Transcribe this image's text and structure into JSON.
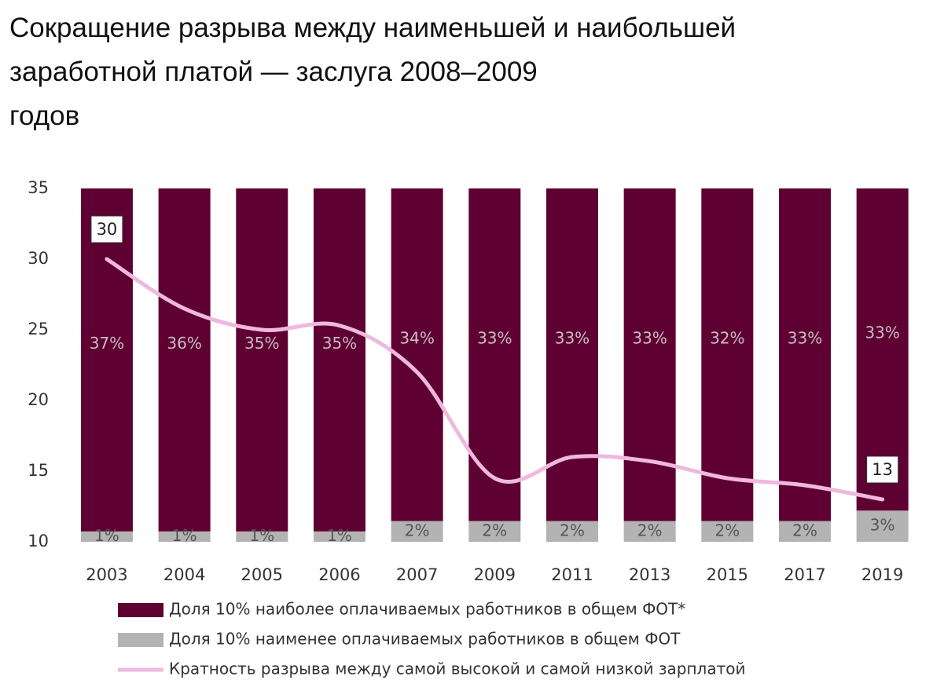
{
  "chart_data": {
    "type": "bar",
    "title": [
      "Сокращение разрыва между наименьшей и наибольшей",
      "заработной платой — заслуга 2008–2009",
      "годов"
    ],
    "categories": [
      "2003",
      "2004",
      "2005",
      "2006",
      "2007",
      "2009",
      "2011",
      "2013",
      "2015",
      "2017",
      "2019"
    ],
    "series": [
      {
        "name": "Доля 10% наиболее оплачиваемых работников в общем ФОТ*",
        "type": "bar",
        "axis": "y2",
        "color": "#5e0032",
        "values": [
          37,
          36,
          35,
          35,
          34,
          33,
          33,
          33,
          32,
          33,
          33
        ],
        "value_labels": [
          "37%",
          "36%",
          "35%",
          "35%",
          "34%",
          "33%",
          "33%",
          "33%",
          "32%",
          "33%",
          "33%"
        ]
      },
      {
        "name": "Доля 10% наименее оплачиваемых работников в общем ФОТ",
        "type": "bar",
        "axis": "y2",
        "color": "#b3b3b3",
        "values": [
          1,
          1,
          1,
          1,
          2,
          2,
          2,
          2,
          2,
          2,
          3
        ],
        "value_labels": [
          "1%",
          "1%",
          "1%",
          "1%",
          "2%",
          "2%",
          "2%",
          "2%",
          "2%",
          "2%",
          "3%"
        ]
      },
      {
        "name": "Кратность разрыва между самой высокой и самой низкой зарплатой",
        "type": "line",
        "color": "#efb8de",
        "values": [
          30,
          26.5,
          25,
          25.3,
          22,
          14.5,
          16,
          15.7,
          14.5,
          14,
          13
        ],
        "value_labels": [
          "30",
          null,
          null,
          null,
          null,
          null,
          null,
          null,
          null,
          null,
          "13"
        ]
      }
    ],
    "ylim": [
      10,
      35
    ],
    "yticks": [
      10,
      15,
      20,
      25,
      30,
      35
    ],
    "y2lim": [
      0,
      34
    ],
    "legend": "bottom"
  }
}
